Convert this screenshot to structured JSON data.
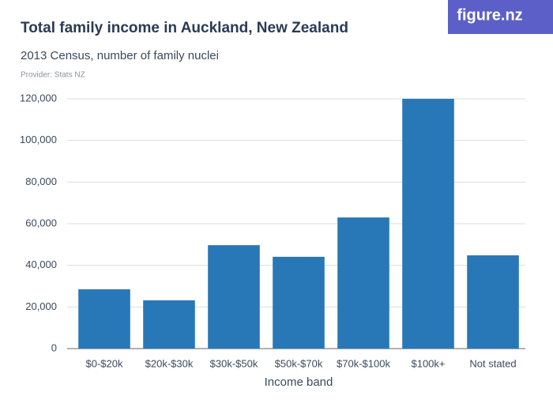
{
  "chart_data": {
    "type": "bar",
    "title": "Total family income in Auckland, New Zealand",
    "subtitle": "2013 Census, number of family nuclei",
    "provider": "Provider: Stats NZ",
    "logo": "figure.nz",
    "x_label": "Income band",
    "categories": [
      "$0-$20k",
      "$20k-$30k",
      "$30k-$50k",
      "$50k-$70k",
      "$70k-$100k",
      "$100k+",
      "Not stated"
    ],
    "values": [
      28500,
      23200,
      49700,
      44100,
      63000,
      120000,
      44800
    ],
    "color": "#2878b8",
    "ylim": [
      0,
      120000
    ],
    "yticks": [
      0,
      {
        "value": 20000,
        "label": "20,000"
      },
      {
        "value": 40000,
        "label": "40,000"
      },
      {
        "value": 60000,
        "label": "60,000"
      },
      {
        "value": 80000,
        "label": "80,000"
      },
      {
        "value": 100000,
        "label": "100,000"
      },
      {
        "value": 120000,
        "label": "120,000"
      }
    ],
    "grid": true
  }
}
